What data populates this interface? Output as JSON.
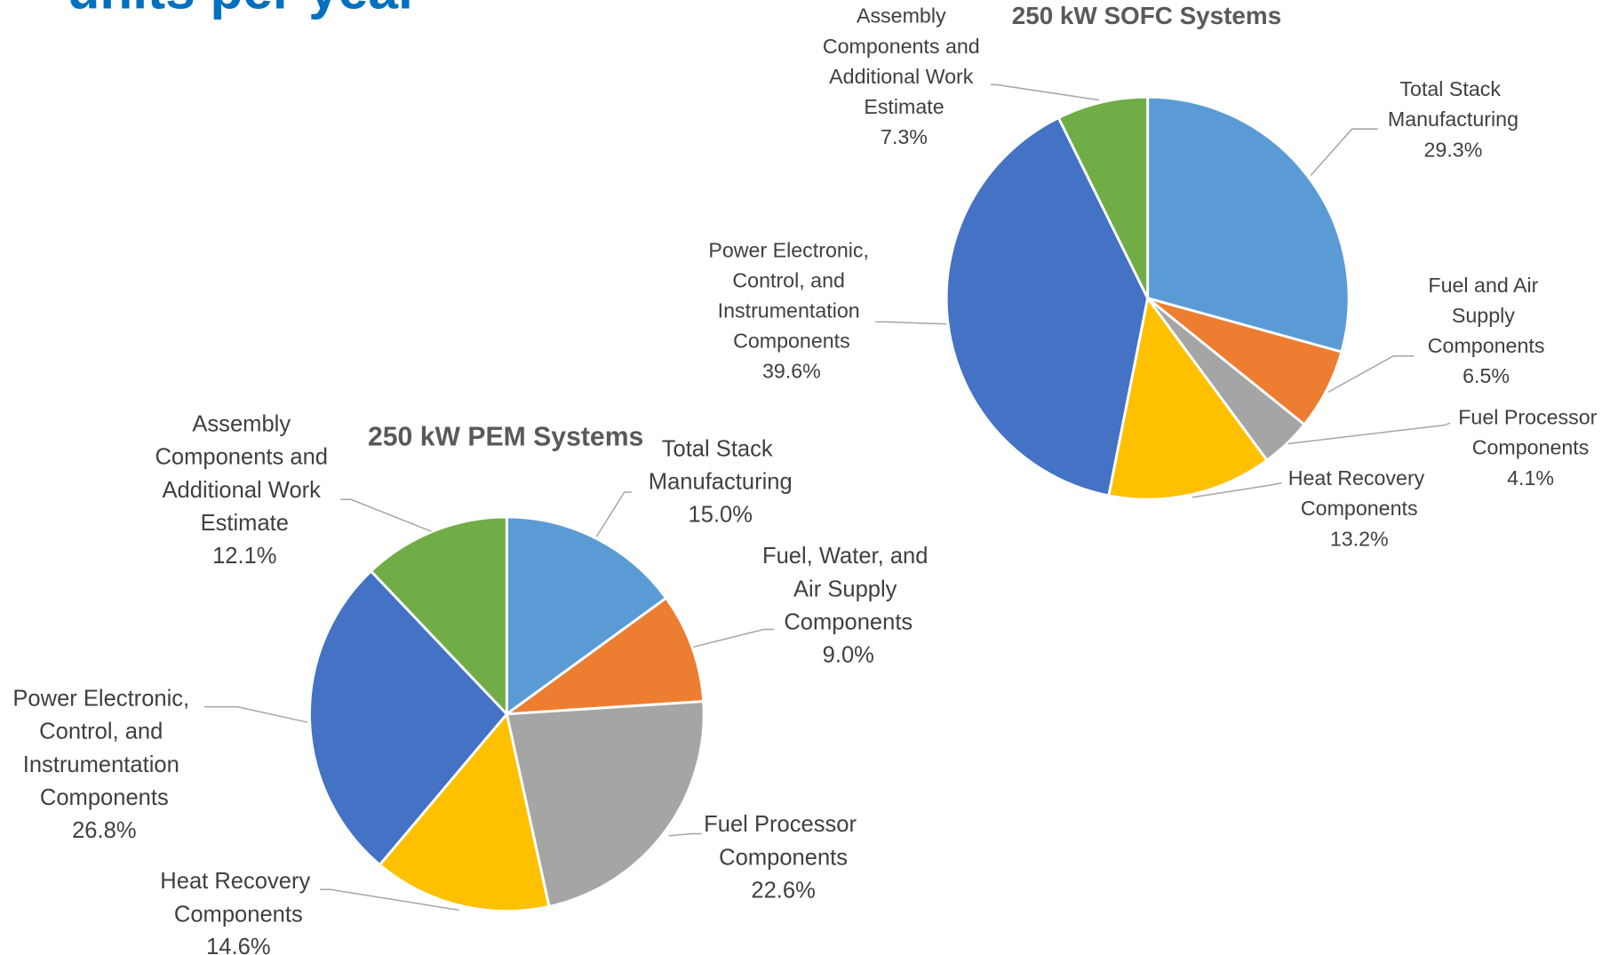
{
  "header": {
    "title": "units per year"
  },
  "chart_data": [
    {
      "type": "pie",
      "title": "250 kW SOFC Systems",
      "categories": [
        "Total Stack Manufacturing",
        "Fuel and Air Supply Components",
        "Fuel Processor Components",
        "Heat Recovery Components",
        "Power Electronic, Control, and Instrumentation Components",
        "Assembly Components and Additional Work Estimate"
      ],
      "values": [
        29.3,
        6.5,
        4.1,
        13.2,
        39.6,
        7.3
      ],
      "value_labels": [
        "29.3%",
        "6.5%",
        "4.1%",
        "13.2%",
        "39.6%",
        "7.3%"
      ],
      "colors": [
        "#5b9bd5",
        "#ed7d31",
        "#a5a5a5",
        "#ffc000",
        "#4472c4",
        "#70ad47"
      ]
    },
    {
      "type": "pie",
      "title": "250 kW PEM Systems",
      "categories": [
        "Total Stack Manufacturing",
        "Fuel, Water, and Air Supply Components",
        "Fuel Processor Components",
        "Heat Recovery Components",
        "Power Electronic, Control, and Instrumentation Components",
        "Assembly Components and Additional Work Estimate"
      ],
      "values": [
        15.0,
        9.0,
        22.6,
        14.6,
        26.8,
        12.1
      ],
      "value_labels": [
        "15.0%",
        "9.0%",
        "22.6%",
        "14.6%",
        "26.8%",
        "12.1%"
      ],
      "colors": [
        "#5b9bd5",
        "#ed7d31",
        "#a5a5a5",
        "#ffc000",
        "#4472c4",
        "#70ad47"
      ]
    }
  ]
}
